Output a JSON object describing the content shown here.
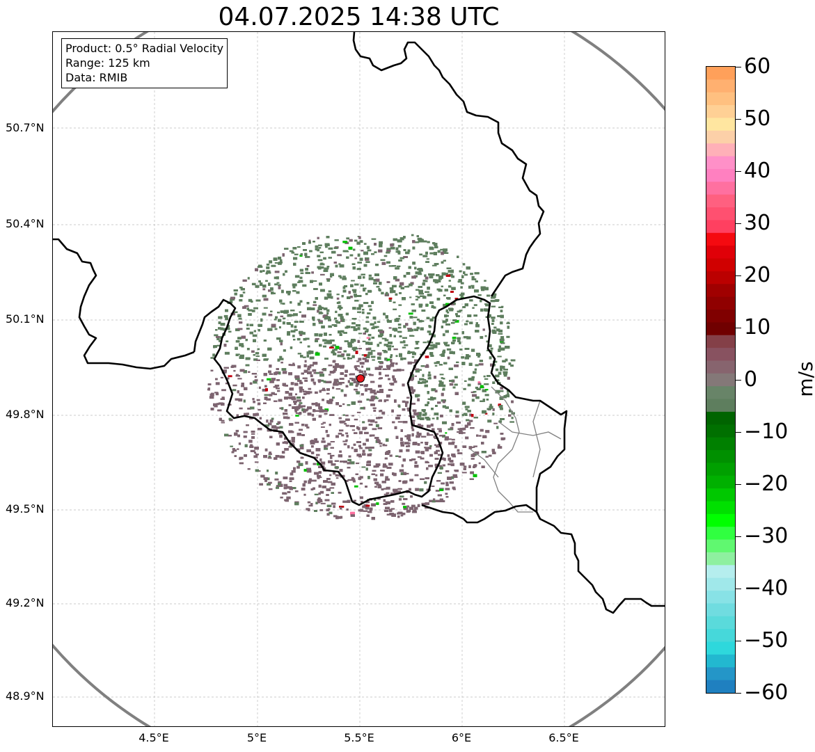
{
  "title": "04.07.2025 14:38 UTC",
  "info_box": {
    "product": "Product: 0.5° Radial Velocity",
    "range": "Range: 125 km",
    "data": "Data: RMIB"
  },
  "map": {
    "lat_labels": [
      "50.7°N",
      "50.4°N",
      "50.1°N",
      "49.8°N",
      "49.5°N",
      "49.2°N",
      "48.9°N"
    ],
    "lon_labels": [
      "4.5°E",
      "5°E",
      "5.5°E",
      "6°E",
      "6.5°E"
    ],
    "radar_site": {
      "lon": 5.505,
      "lat": 49.914
    },
    "range_ring_color": "#808080",
    "border_color": "#000000",
    "admin_border_color": "#808080"
  },
  "colorbar": {
    "unit": "m/s",
    "min": -60,
    "max": 60,
    "tick_labels": [
      "60",
      "50",
      "40",
      "30",
      "20",
      "10",
      "0",
      "−10",
      "−20",
      "−30",
      "−40",
      "−50",
      "−60"
    ],
    "colors": [
      "#ffa05a",
      "#ffb070",
      "#ffc080",
      "#ffd095",
      "#ffe6a0",
      "#fcd0a8",
      "#ffb0b8",
      "#ff90c8",
      "#ff80c0",
      "#ff70a0",
      "#ff6080",
      "#ff5070",
      "#ff4060",
      "#f50a10",
      "#e00008",
      "#d00000",
      "#bb0000",
      "#a00000",
      "#900000",
      "#800000",
      "#700000",
      "#844048",
      "#885260",
      "#87646e",
      "#847878",
      "#688468",
      "#5e7e5e",
      "#006400",
      "#007000",
      "#008000",
      "#009000",
      "#00a000",
      "#00b000",
      "#00c800",
      "#00e000",
      "#00ff00",
      "#30ff40",
      "#60f870",
      "#8ef0a0",
      "#b5eeee",
      "#a0e8ea",
      "#88e2e6",
      "#70dce0",
      "#5adadb",
      "#46d8da",
      "#2ed8dc",
      "#22b8d0",
      "#2496c8",
      "#1f80c0"
    ]
  },
  "colors": {
    "velocity_green": "#5e7e5e",
    "velocity_mauve": "#7d6470",
    "radar_marker": "#e8161c"
  }
}
